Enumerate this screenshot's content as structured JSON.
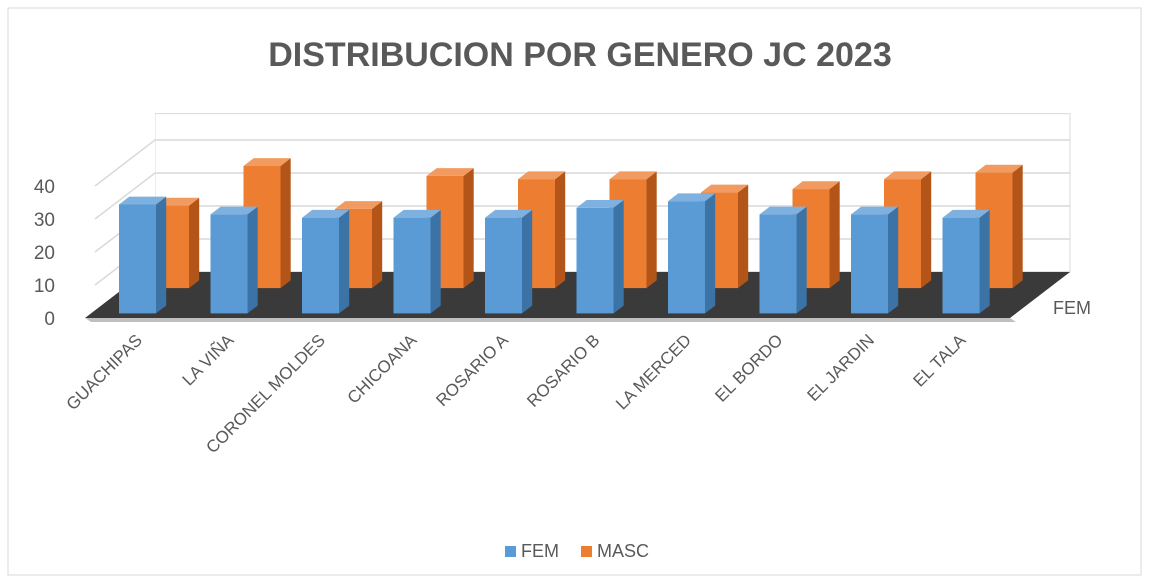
{
  "chart_data": {
    "type": "bar3d",
    "title": "DISTRIBUCION POR GENERO JC 2023",
    "categories": [
      "GUACHIPAS",
      "LA VIÑA",
      "CORONEL MOLDES",
      "CHICOANA",
      "ROSARIO A",
      "ROSARIO B",
      "LA MERCED",
      "EL BORDO",
      "EL JARDIN",
      "EL TALA"
    ],
    "series": [
      {
        "name": "FEM",
        "color": "#5b9bd5",
        "values": [
          33,
          30,
          29,
          29,
          29,
          32,
          34,
          30,
          30,
          29
        ]
      },
      {
        "name": "MASC",
        "color": "#ed7d31",
        "values": [
          25,
          37,
          24,
          34,
          33,
          33,
          29,
          30,
          33,
          35
        ]
      }
    ],
    "ylim": [
      0,
      40
    ],
    "yticks": [
      0,
      10,
      20,
      30,
      40
    ],
    "grid": true,
    "legend": "bottom"
  }
}
